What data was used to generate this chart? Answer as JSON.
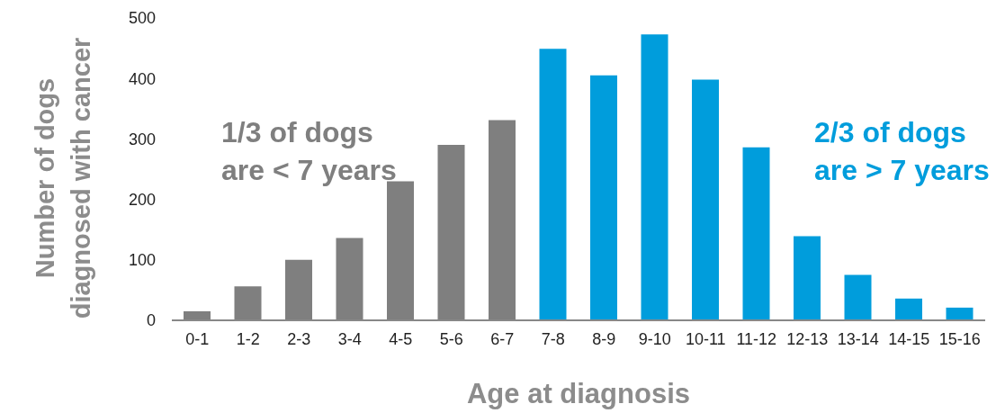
{
  "chart_data": {
    "type": "bar",
    "xlabel": "Age at diagnosis",
    "ylabel": "Number of dogs\ndiagnosed with cancer",
    "categories": [
      "0-1",
      "1-2",
      "2-3",
      "3-4",
      "4-5",
      "5-6",
      "6-7",
      "7-8",
      "8-9",
      "9-10",
      "10-11",
      "11-12",
      "12-13",
      "13-14",
      "14-15",
      "15-16"
    ],
    "values": [
      15,
      56,
      100,
      136,
      230,
      290,
      331,
      449,
      405,
      473,
      398,
      286,
      139,
      75,
      36,
      21
    ],
    "colors": [
      "#7f7f7f",
      "#7f7f7f",
      "#7f7f7f",
      "#7f7f7f",
      "#7f7f7f",
      "#7f7f7f",
      "#7f7f7f",
      "#009ddc",
      "#009ddc",
      "#009ddc",
      "#009ddc",
      "#009ddc",
      "#009ddc",
      "#009ddc",
      "#009ddc",
      "#009ddc"
    ],
    "ylim": [
      0,
      500
    ],
    "yticks": [
      0,
      100,
      200,
      300,
      400,
      500
    ],
    "grid": false,
    "legend": false,
    "annotations": [
      "1/3 of dogs\nare < 7 years",
      "2/3 of dogs\nare > 7 years"
    ]
  }
}
